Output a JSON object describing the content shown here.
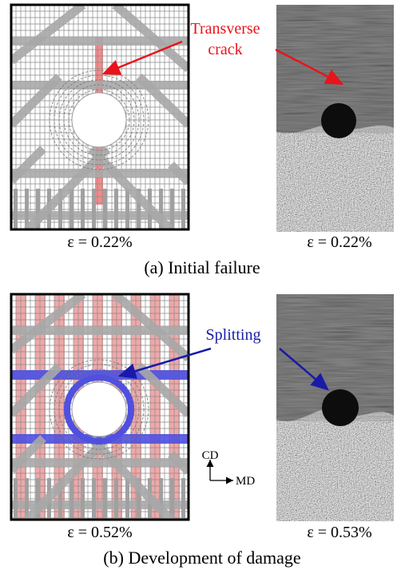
{
  "panels": [
    {
      "caption": "(a) Initial failure",
      "model_strain": "ε = 0.22%",
      "photo_strain": "ε = 0.22%",
      "annotation": [
        "Transverse",
        "crack"
      ]
    },
    {
      "caption": "(b) Development of damage",
      "model_strain": "ε = 0.52%",
      "photo_strain": "ε = 0.53%",
      "annotation": [
        "Splitting"
      ]
    }
  ],
  "axes": {
    "vertical": "CD",
    "horizontal": "MD"
  }
}
